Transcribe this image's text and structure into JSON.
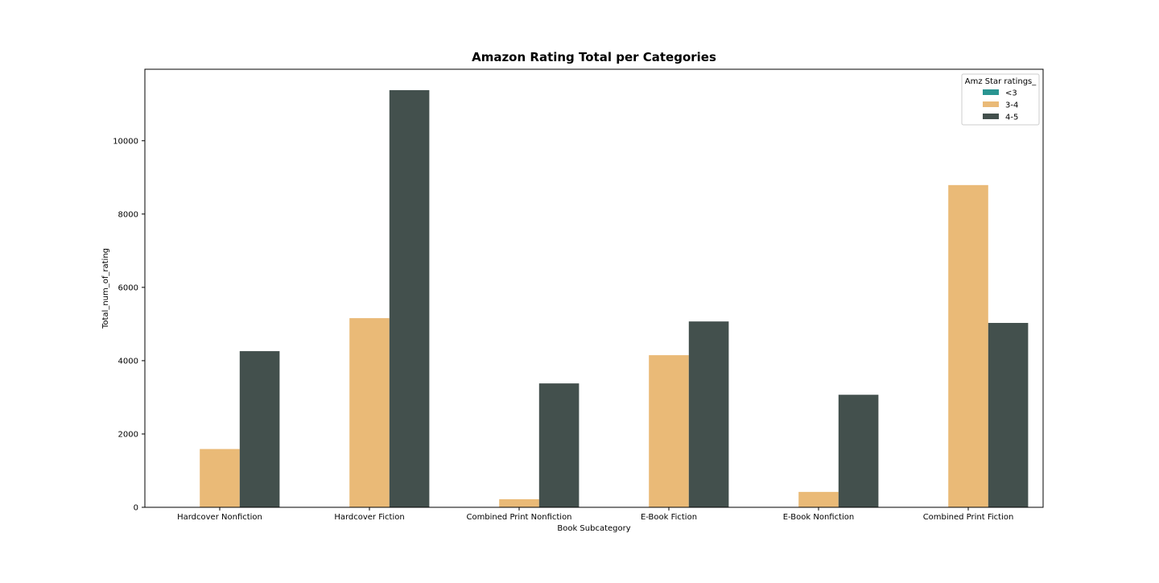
{
  "chart_data": {
    "type": "bar",
    "title": "Amazon Rating Total per Categories",
    "xlabel": "Book Subcategory",
    "ylabel": "Total_num_of_rating",
    "ylim": [
      0,
      11950
    ],
    "yticks": [
      0,
      2000,
      4000,
      6000,
      8000,
      10000
    ],
    "categories": [
      "Hardcover Nonfiction",
      "Hardcover Fiction",
      "Combined Print Nonfiction",
      "E-Book Fiction",
      "E-Book Nonfiction",
      "Combined Print Fiction"
    ],
    "legend": {
      "title": "Amz Star ratings_",
      "position": "top-right"
    },
    "series": [
      {
        "name": "<3",
        "color": "#2a9591",
        "values": [
          0,
          0,
          0,
          0,
          0,
          0
        ]
      },
      {
        "name": "3-4",
        "color": "#eaba77",
        "values": [
          1590,
          5160,
          220,
          4150,
          420,
          8790
        ]
      },
      {
        "name": "4-5",
        "color": "#43504d",
        "values": [
          4260,
          11380,
          3380,
          5070,
          3070,
          5030
        ]
      }
    ],
    "grid": false
  }
}
